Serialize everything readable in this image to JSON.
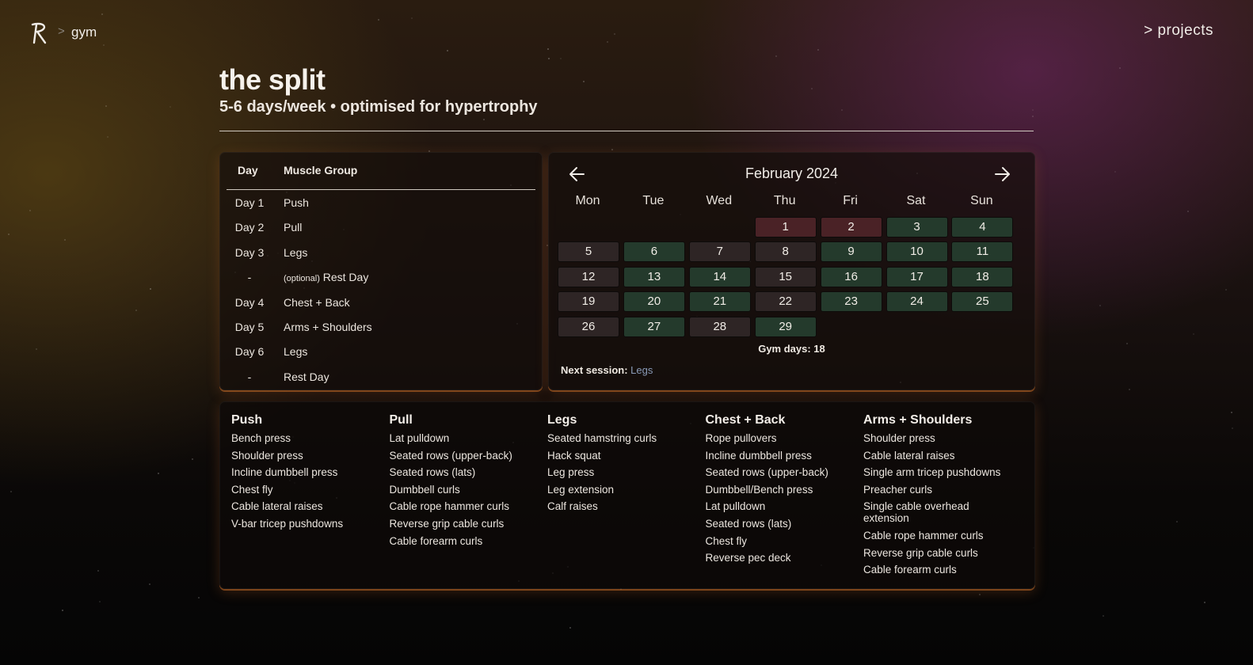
{
  "nav": {
    "logo_icon": "r-logo-icon",
    "breadcrumb_separator": ">",
    "breadcrumb_current": "gym",
    "projects_link": "> projects"
  },
  "header": {
    "title": "the split",
    "subtitle": "5-6 days/week • optimised for hypertrophy"
  },
  "split_table": {
    "col_day": "Day",
    "col_group": "Muscle Group",
    "rows": [
      {
        "day": "Day 1",
        "group": "Push"
      },
      {
        "day": "Day 2",
        "group": "Pull"
      },
      {
        "day": "Day 3",
        "group": "Legs"
      },
      {
        "day": "-",
        "group_prefix": "(optional)",
        "group": " Rest Day"
      },
      {
        "day": "Day 4",
        "group": "Chest + Back"
      },
      {
        "day": "Day 5",
        "group": "Arms + Shoulders"
      },
      {
        "day": "Day 6",
        "group": "Legs"
      },
      {
        "day": "-",
        "group": "Rest Day"
      }
    ]
  },
  "calendar": {
    "month_label": "February 2024",
    "prev_icon": "arrow-left-icon",
    "next_icon": "arrow-right-icon",
    "weekdays": [
      "Mon",
      "Tue",
      "Wed",
      "Thu",
      "Fri",
      "Sat",
      "Sun"
    ],
    "first_weekday_index": 3,
    "days": [
      {
        "n": "1",
        "s": "missed"
      },
      {
        "n": "2",
        "s": "missed"
      },
      {
        "n": "3",
        "s": "gym"
      },
      {
        "n": "4",
        "s": "gym"
      },
      {
        "n": "5",
        "s": "none"
      },
      {
        "n": "6",
        "s": "gym"
      },
      {
        "n": "7",
        "s": "none"
      },
      {
        "n": "8",
        "s": "none"
      },
      {
        "n": "9",
        "s": "gym"
      },
      {
        "n": "10",
        "s": "gym"
      },
      {
        "n": "11",
        "s": "gym"
      },
      {
        "n": "12",
        "s": "none"
      },
      {
        "n": "13",
        "s": "gym"
      },
      {
        "n": "14",
        "s": "gym"
      },
      {
        "n": "15",
        "s": "none"
      },
      {
        "n": "16",
        "s": "gym"
      },
      {
        "n": "17",
        "s": "gym"
      },
      {
        "n": "18",
        "s": "gym"
      },
      {
        "n": "19",
        "s": "none"
      },
      {
        "n": "20",
        "s": "gym"
      },
      {
        "n": "21",
        "s": "gym"
      },
      {
        "n": "22",
        "s": "none"
      },
      {
        "n": "23",
        "s": "gym"
      },
      {
        "n": "24",
        "s": "gym"
      },
      {
        "n": "25",
        "s": "gym"
      },
      {
        "n": "26",
        "s": "none"
      },
      {
        "n": "27",
        "s": "gym"
      },
      {
        "n": "28",
        "s": "none"
      },
      {
        "n": "29",
        "s": "gym"
      }
    ],
    "colors": {
      "gym": "#243a2c",
      "missed": "#4a2226",
      "none": "#2e2525"
    },
    "gym_days_label": "Gym days: 18",
    "next_session_label": "Next session:",
    "next_session_value": "Legs"
  },
  "exercises": [
    {
      "title": "Push",
      "items": [
        "Bench press",
        "Shoulder press",
        "Incline dumbbell press",
        "Chest fly",
        "Cable lateral raises",
        "V-bar tricep pushdowns"
      ]
    },
    {
      "title": "Pull",
      "items": [
        "Lat pulldown",
        "Seated rows (upper-back)",
        "Seated rows (lats)",
        "Dumbbell curls",
        "Cable rope hammer curls",
        "Reverse grip cable curls",
        "Cable forearm curls"
      ]
    },
    {
      "title": "Legs",
      "items": [
        "Seated hamstring curls",
        "Hack squat",
        "Leg press",
        "Leg extension",
        "Calf raises"
      ]
    },
    {
      "title": "Chest + Back",
      "items": [
        "Rope pullovers",
        "Incline dumbbell press",
        "Seated rows (upper-back)",
        "Dumbbell/Bench press",
        "Lat pulldown",
        "Seated rows (lats)",
        "Chest fly",
        "Reverse pec deck"
      ]
    },
    {
      "title": "Arms + Shoulders",
      "items": [
        "Shoulder press",
        "Cable lateral raises",
        "Single arm tricep pushdowns",
        "Preacher curls",
        "Single cable overhead extension",
        "Cable rope hammer curls",
        "Reverse grip cable curls",
        "Cable forearm curls"
      ]
    }
  ]
}
